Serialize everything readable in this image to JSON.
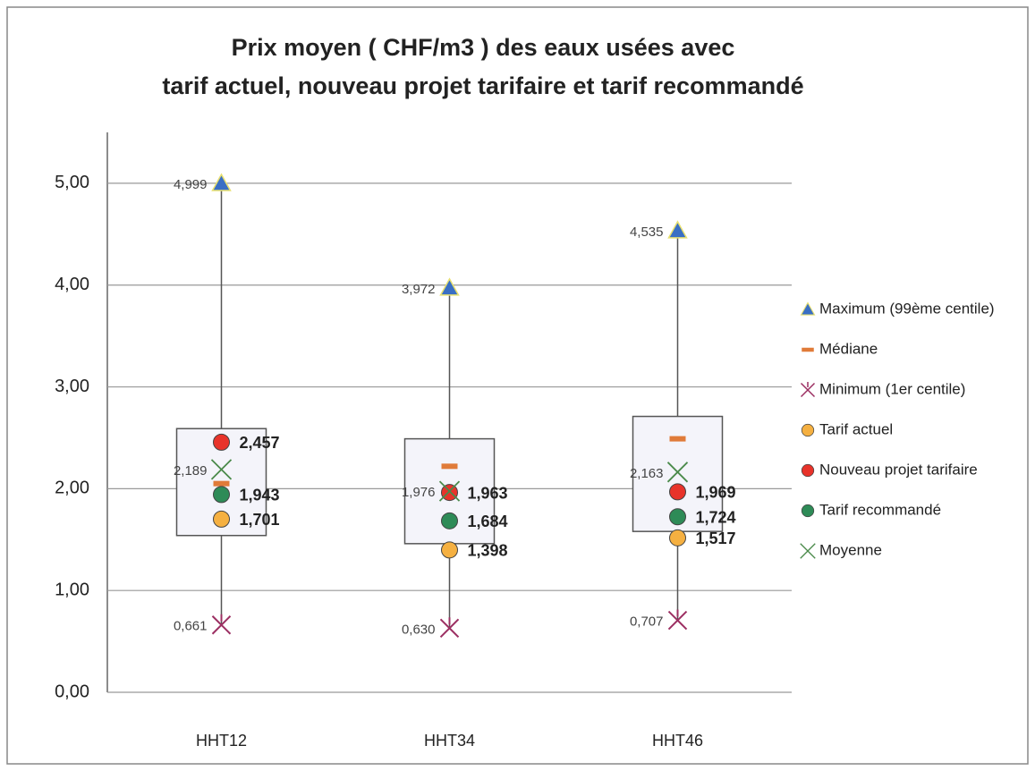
{
  "chart_data": {
    "type": "box",
    "title": [
      "Prix moyen ( CHF/m3 ) des eaux usées avec",
      "tarif actuel, nouveau projet tarifaire et tarif recommandé"
    ],
    "categories": [
      "HHT12",
      "HHT34",
      "HHT46"
    ],
    "ylim": [
      0,
      5.5
    ],
    "yticks": [
      {
        "value": 0,
        "label": "0,00"
      },
      {
        "value": 1,
        "label": "1,00"
      },
      {
        "value": 2,
        "label": "2,00"
      },
      {
        "value": 3,
        "label": "3,00"
      },
      {
        "value": 4,
        "label": "4,00"
      },
      {
        "value": 5,
        "label": "5,00"
      }
    ],
    "grid": true,
    "box_low": [
      1.54,
      1.46,
      1.58
    ],
    "box_high": [
      2.59,
      2.49,
      2.71
    ],
    "legend": "right",
    "series": [
      {
        "name": "Maximum (99ème centile)",
        "color": "#3a6fc4",
        "marker": "triangle",
        "values": [
          4.999,
          3.972,
          4.535
        ],
        "value_labels": [
          "4,999",
          "3,972",
          "4,535"
        ],
        "label_position": "left"
      },
      {
        "name": "Médiane",
        "color": "#e07b39",
        "marker": "dash",
        "values": [
          2.05,
          2.22,
          2.49
        ]
      },
      {
        "name": "Minimum (1er centile)",
        "color": "#9c2f62",
        "marker": "star",
        "values": [
          0.661,
          0.63,
          0.707
        ],
        "value_labels": [
          "0,661",
          "0,630",
          "0,707"
        ],
        "label_position": "left"
      },
      {
        "name": "Tarif actuel",
        "color": "#f5b041",
        "marker": "circle",
        "values": [
          1.701,
          1.398,
          1.517
        ],
        "value_labels": [
          "1,701",
          "1,398",
          "1,517"
        ],
        "label_position": "right"
      },
      {
        "name": "Nouveau projet tarifaire",
        "color": "#e8332a",
        "marker": "circle",
        "values": [
          2.457,
          1.963,
          1.969
        ],
        "value_labels": [
          "2,457",
          "1,963",
          "1,969"
        ],
        "label_position": "right"
      },
      {
        "name": "Tarif recommandé",
        "color": "#2e8b57",
        "marker": "circle",
        "values": [
          1.943,
          1.684,
          1.724
        ],
        "value_labels": [
          "1,943",
          "1,684",
          "1,724"
        ],
        "label_position": "right"
      },
      {
        "name": "Moyenne",
        "color": "#4a8a4a",
        "marker": "cross",
        "values": [
          2.189,
          1.976,
          2.163
        ],
        "value_labels": [
          "2,189",
          "1,976",
          "2,163"
        ],
        "label_position": "left"
      }
    ]
  }
}
